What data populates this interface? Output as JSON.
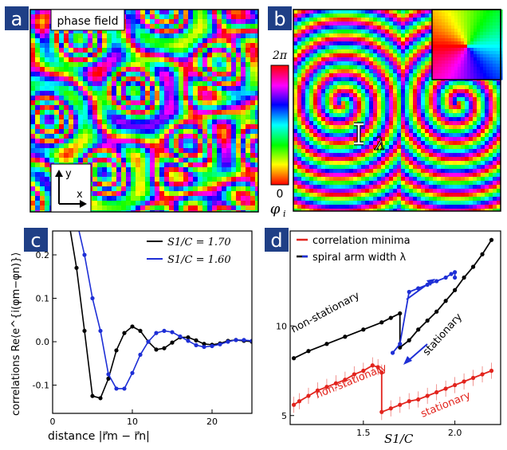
{
  "panels": {
    "a": {
      "letter": "a",
      "label": "phase field",
      "axis_y": "y",
      "axis_x": "x"
    },
    "b": {
      "letter": "b"
    },
    "colorbar": {
      "top": "2π",
      "bottom": "0",
      "symbol": "φ",
      "symbol_sub": "i"
    },
    "lambda": "λ",
    "c": {
      "letter": "c"
    },
    "d": {
      "letter": "d"
    }
  },
  "chart_data": [
    {
      "panel": "c",
      "type": "line",
      "xlabel": "distance |r⃗m − r⃗n|",
      "ylabel": "correlations  Re⟨e^{i(φm−φn)}⟩",
      "xlim": [
        0,
        25
      ],
      "ylim": [
        -0.165,
        0.255
      ],
      "xticks": [
        "0",
        "10",
        "20"
      ],
      "yticks": [
        "-0.1",
        "0.0",
        "0.1",
        "0.2"
      ],
      "legend_position": "top-right",
      "series": [
        {
          "name": "S1/C = 1.70",
          "color": "#000000",
          "x": [
            2,
            3,
            4,
            5,
            6,
            7,
            8,
            9,
            10,
            11,
            12,
            13,
            14,
            15,
            16,
            17,
            18,
            19,
            20,
            21,
            22,
            23,
            24,
            25
          ],
          "y": [
            0.28,
            0.17,
            0.025,
            -0.125,
            -0.13,
            -0.085,
            -0.02,
            0.02,
            0.035,
            0.025,
            0.0,
            -0.018,
            -0.015,
            -0.002,
            0.01,
            0.01,
            0.003,
            -0.005,
            -0.007,
            -0.004,
            0.002,
            0.004,
            0.002,
            0.0
          ]
        },
        {
          "name": "S1/C = 1.60",
          "color": "#1e2fd6",
          "x": [
            3,
            4,
            5,
            6,
            7,
            8,
            9,
            10,
            11,
            12,
            13,
            14,
            15,
            16,
            17,
            18,
            19,
            20,
            21,
            22,
            23,
            24,
            25
          ],
          "y": [
            0.28,
            0.2,
            0.1,
            0.025,
            -0.075,
            -0.108,
            -0.108,
            -0.072,
            -0.03,
            0.0,
            0.02,
            0.025,
            0.022,
            0.012,
            0.002,
            -0.008,
            -0.012,
            -0.01,
            -0.006,
            0.0,
            0.004,
            0.004,
            0.002
          ]
        }
      ]
    },
    {
      "panel": "d",
      "type": "line",
      "xlabel": "S1/C",
      "xlim": [
        1.1,
        2.25
      ],
      "ylim": [
        4.5,
        15.3
      ],
      "xticks": [
        "1.5",
        "2.0"
      ],
      "yticks": [
        "5",
        "10"
      ],
      "legend_position": "top-left",
      "legend": [
        "correlation minima",
        "spiral arm width λ"
      ],
      "annotations": [
        "non-stationary",
        "stationary",
        "non-stationary",
        "stationary"
      ],
      "series": [
        {
          "name": "correlation minima",
          "color": "#e2241d",
          "x": [
            1.12,
            1.15,
            1.2,
            1.25,
            1.3,
            1.35,
            1.4,
            1.45,
            1.5,
            1.55,
            1.58,
            1.6,
            1.6,
            1.65,
            1.7,
            1.75,
            1.8,
            1.85,
            1.9,
            1.95,
            2.0,
            2.05,
            2.1,
            2.15,
            2.2
          ],
          "y": [
            5.6,
            5.8,
            6.1,
            6.4,
            6.6,
            6.8,
            7.0,
            7.3,
            7.5,
            7.8,
            7.7,
            7.4,
            5.2,
            5.4,
            5.6,
            5.8,
            5.9,
            6.1,
            6.3,
            6.5,
            6.7,
            6.9,
            7.1,
            7.3,
            7.5
          ]
        },
        {
          "name": "spiral arm width λ (black)",
          "color": "#000000",
          "x": [
            1.12,
            1.2,
            1.3,
            1.4,
            1.5,
            1.6,
            1.65,
            1.7,
            1.7,
            1.75,
            1.8,
            1.85,
            1.9,
            1.95,
            2.0,
            2.05,
            2.1,
            2.15,
            2.2
          ],
          "y": [
            8.2,
            8.6,
            9.0,
            9.4,
            9.8,
            10.2,
            10.45,
            10.7,
            8.8,
            9.2,
            9.8,
            10.3,
            10.8,
            11.4,
            12.0,
            12.7,
            13.3,
            14.0,
            14.8
          ]
        },
        {
          "name": "spiral arm width λ (blue)",
          "color": "#1e2fd6",
          "x": [
            1.66,
            1.7,
            1.75,
            1.8,
            1.85,
            1.9,
            1.95,
            1.98,
            2.0,
            2.0
          ],
          "y": [
            8.5,
            9.0,
            11.9,
            12.1,
            12.3,
            12.5,
            12.7,
            12.9,
            13.0,
            12.7
          ]
        }
      ]
    }
  ]
}
